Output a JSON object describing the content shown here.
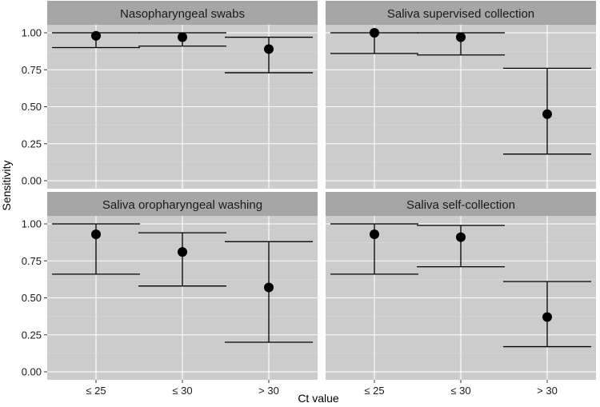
{
  "chart_data": {
    "type": "scatter",
    "xlabel": "Ct value",
    "ylabel": "Sensitivity",
    "categories": [
      "≤ 25",
      "≤ 30",
      "> 30"
    ],
    "ylim": [
      0,
      1
    ],
    "yticks": [
      "0.00",
      "0.25",
      "0.50",
      "0.75",
      "1.00"
    ],
    "grid": true,
    "colors": {
      "panel_bg": "#cccccc",
      "strip_bg": "#a6a6a6",
      "grid_major": "#ffffff",
      "grid_minor": "#dcdcdc",
      "mark": "#000000"
    },
    "panels": [
      {
        "title": "Nasopharyngeal swabs",
        "points": [
          {
            "x": "≤ 25",
            "y": 0.98,
            "lower": 0.9,
            "upper": 1.0
          },
          {
            "x": "≤ 30",
            "y": 0.97,
            "lower": 0.91,
            "upper": 1.0
          },
          {
            "x": "> 30",
            "y": 0.89,
            "lower": 0.73,
            "upper": 0.97
          }
        ]
      },
      {
        "title": "Saliva supervised collection",
        "points": [
          {
            "x": "≤ 25",
            "y": 1.0,
            "lower": 0.86,
            "upper": 1.0
          },
          {
            "x": "≤ 30",
            "y": 0.97,
            "lower": 0.85,
            "upper": 1.0
          },
          {
            "x": "> 30",
            "y": 0.45,
            "lower": 0.18,
            "upper": 0.76
          }
        ]
      },
      {
        "title": "Saliva oropharyngeal washing",
        "points": [
          {
            "x": "≤ 25",
            "y": 0.93,
            "lower": 0.66,
            "upper": 1.0
          },
          {
            "x": "≤ 30",
            "y": 0.81,
            "lower": 0.58,
            "upper": 0.94
          },
          {
            "x": "> 30",
            "y": 0.57,
            "lower": 0.2,
            "upper": 0.88
          }
        ]
      },
      {
        "title": "Saliva self-collection",
        "points": [
          {
            "x": "≤ 25",
            "y": 0.93,
            "lower": 0.66,
            "upper": 1.0
          },
          {
            "x": "≤ 30",
            "y": 0.91,
            "lower": 0.71,
            "upper": 0.99
          },
          {
            "x": "> 30",
            "y": 0.37,
            "lower": 0.17,
            "upper": 0.61
          }
        ]
      }
    ]
  }
}
